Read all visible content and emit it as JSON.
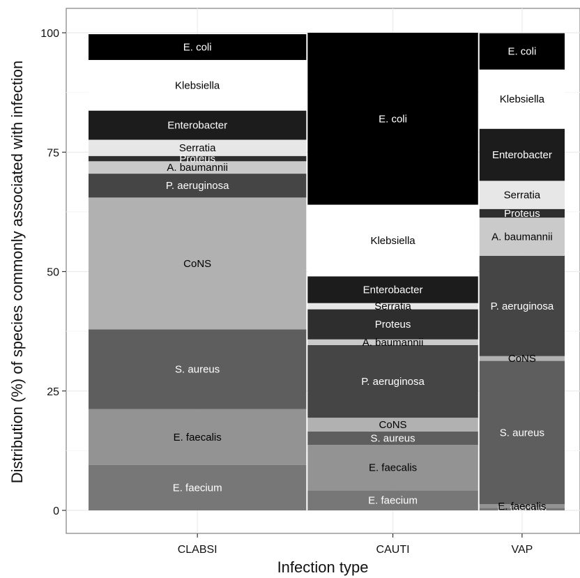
{
  "chart_data": {
    "type": "bar",
    "subtype": "mosaic",
    "xlabel": "Infection type",
    "ylabel": "Distribution (%) of species commonly associated with infection",
    "ylim": [
      0,
      100
    ],
    "yticks": [
      0,
      25,
      50,
      75,
      100
    ],
    "grid": true,
    "categories": [
      "CLABSI",
      "CAUTI",
      "VAP"
    ],
    "column_width_share": [
      0.46,
      0.36,
      0.18
    ],
    "stack_order": [
      "E. faecium",
      "E. faecalis",
      "S. aureus",
      "CoNS",
      "P. aeruginosa",
      "A. baumannii",
      "Proteus",
      "Serratia",
      "Enterobacter",
      "Klebsiella",
      "E. coli"
    ],
    "series": [
      {
        "name": "E. faecium",
        "color": "#777777",
        "text_color": "#ffffff",
        "values": [
          9.5,
          4.2,
          0.5
        ]
      },
      {
        "name": "E. faecalis",
        "color": "#939393",
        "text_color": "#000000",
        "values": [
          11.7,
          9.5,
          0.8
        ]
      },
      {
        "name": "S. aureus",
        "color": "#5e5e5e",
        "text_color": "#ffffff",
        "values": [
          16.7,
          2.8,
          30.0
        ]
      },
      {
        "name": "CoNS",
        "color": "#b1b1b1",
        "text_color": "#000000",
        "values": [
          27.6,
          2.9,
          1.0
        ]
      },
      {
        "name": "P. aeruginosa",
        "color": "#454545",
        "text_color": "#ffffff",
        "values": [
          5.0,
          15.2,
          21.0
        ]
      },
      {
        "name": "A. baumannii",
        "color": "#cacaca",
        "text_color": "#000000",
        "values": [
          2.6,
          1.2,
          8.0
        ]
      },
      {
        "name": "Proteus",
        "color": "#2e2e2e",
        "text_color": "#ffffff",
        "values": [
          1.1,
          6.3,
          1.8
        ]
      },
      {
        "name": "Serratia",
        "color": "#e7e7e7",
        "text_color": "#000000",
        "values": [
          3.4,
          1.3,
          5.9
        ]
      },
      {
        "name": "Enterobacter",
        "color": "#1c1c1c",
        "text_color": "#ffffff",
        "values": [
          6.1,
          5.6,
          10.9
        ]
      },
      {
        "name": "Klebsiella",
        "color": "#ffffff",
        "text_color": "#000000",
        "values": [
          10.6,
          15.0,
          12.4
        ]
      },
      {
        "name": "E. coli",
        "color": "#000000",
        "text_color": "#ffffff",
        "values": [
          5.4,
          36.0,
          7.6
        ]
      }
    ]
  }
}
